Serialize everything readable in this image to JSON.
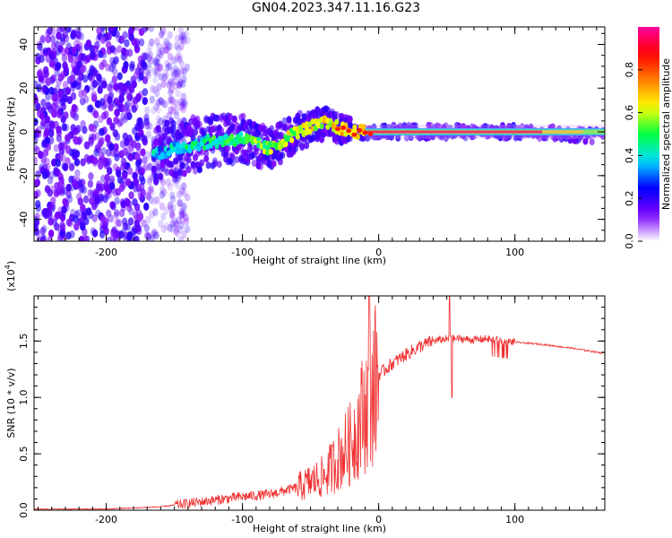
{
  "title": "GN04.2023.347.11.16.G23",
  "chart_data": [
    {
      "type": "heatmap",
      "xlabel": "Height of straight line (km)",
      "ylabel": "Frequency (Hz)",
      "xlim": [
        -253,
        166
      ],
      "ylim": [
        -50,
        48
      ],
      "x_ticks": [
        -200,
        -100,
        0,
        100
      ],
      "x_tick_labels": [
        "-200",
        "-100",
        "0",
        "100"
      ],
      "y_ticks": [
        -40,
        -20,
        0,
        20,
        40
      ],
      "y_tick_labels": [
        "-40",
        "-20",
        "0",
        "20",
        "40"
      ],
      "colorbar": {
        "label": "Normalized spectral amplitude",
        "range": [
          0,
          1
        ],
        "ticks": [
          0,
          0.2,
          0.4,
          0.6,
          0.8
        ],
        "tick_labels": [
          "0.0",
          "0.2",
          "0.4",
          "0.6",
          "0.8"
        ],
        "colors": [
          "#ffffff",
          "#7a00ff",
          "#0000ff",
          "#00e0ff",
          "#00ff40",
          "#ffff00",
          "#ff8000",
          "#ff0000",
          "#ff00a0"
        ]
      },
      "description_points": {
        "noise_region_x": [
          -253,
          -165
        ],
        "signal_track": [
          {
            "x": -165,
            "freq": -10
          },
          {
            "x": -130,
            "freq": -5
          },
          {
            "x": -100,
            "freq": -3
          },
          {
            "x": -80,
            "freq": -8
          },
          {
            "x": -60,
            "freq": 0
          },
          {
            "x": -40,
            "freq": 4
          },
          {
            "x": -20,
            "freq": 0
          },
          {
            "x": 0,
            "freq": 0
          },
          {
            "x": 50,
            "freq": 0
          },
          {
            "x": 100,
            "freq": 0
          },
          {
            "x": 140,
            "freq": -1
          },
          {
            "x": 166,
            "freq": -2
          }
        ]
      }
    },
    {
      "type": "line",
      "xlabel": "Height of straight line (km)",
      "ylabel": "SNR (10 * v/v)",
      "multiplier_label": "(x10",
      "multiplier_exp": "4",
      "multiplier_close": ")",
      "xlim": [
        -253,
        166
      ],
      "ylim": [
        0,
        1.9
      ],
      "x_ticks": [
        -200,
        -100,
        0,
        100
      ],
      "x_tick_labels": [
        "-200",
        "-100",
        "0",
        "100"
      ],
      "y_ticks": [
        0,
        0.5,
        1.0,
        1.5
      ],
      "y_tick_labels": [
        "0.0",
        "0.5",
        "1.0",
        "1.5"
      ],
      "color": "#f03030",
      "series": [
        {
          "name": "SNR",
          "x": [
            -253,
            -200,
            -160,
            -140,
            -120,
            -100,
            -80,
            -60,
            -50,
            -40,
            -30,
            -20,
            -15,
            -10,
            -5,
            0,
            10,
            20,
            30,
            40,
            50,
            60,
            70,
            80,
            90,
            100,
            120,
            140,
            166
          ],
          "y": [
            0.01,
            0.01,
            0.03,
            0.06,
            0.09,
            0.12,
            0.14,
            0.2,
            0.25,
            0.3,
            0.45,
            0.6,
            0.75,
            0.9,
            1.05,
            1.2,
            1.3,
            1.38,
            1.45,
            1.5,
            1.52,
            1.52,
            1.51,
            1.52,
            1.5,
            1.49,
            1.47,
            1.44,
            1.39
          ]
        }
      ]
    }
  ]
}
